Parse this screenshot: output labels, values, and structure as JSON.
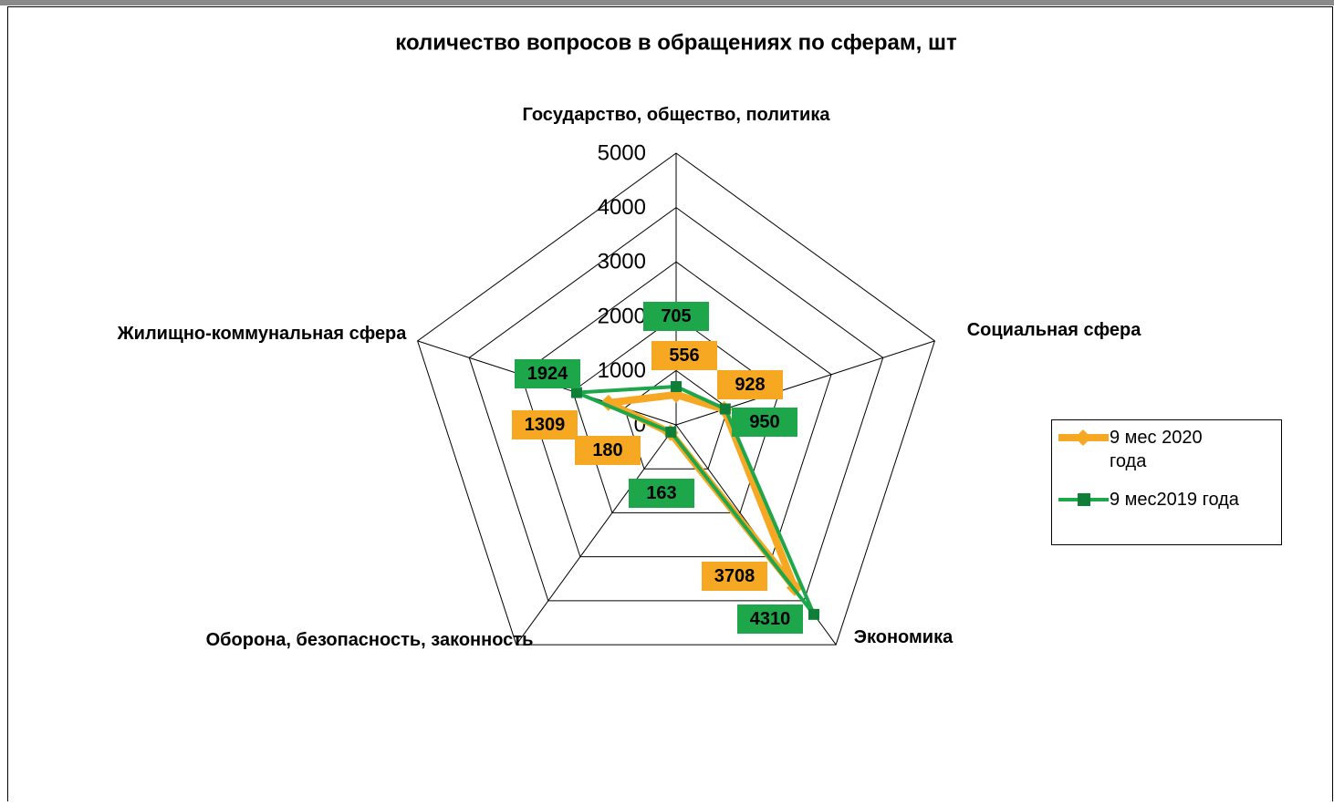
{
  "chart_data": {
    "type": "radar",
    "title": "количество вопросов в обращениях по сферам, шт",
    "categories": [
      "Государство, общество, политика",
      "Социальная сфера",
      "Экономика",
      "Оборона, безопасность, законность",
      "Жилищно-коммунальная сфера"
    ],
    "series": [
      {
        "name": "9 мес 2020 года",
        "color": "#f7a823",
        "values": [
          556,
          928,
          3708,
          180,
          1309
        ]
      },
      {
        "name": "9 мес2019 года",
        "color": "#1ea64b",
        "values": [
          705,
          950,
          4310,
          163,
          1924
        ]
      }
    ],
    "ylim": [
      0,
      5000
    ],
    "yticks": [
      0,
      1000,
      2000,
      3000,
      4000,
      5000
    ],
    "grid": true,
    "legend": "right"
  }
}
